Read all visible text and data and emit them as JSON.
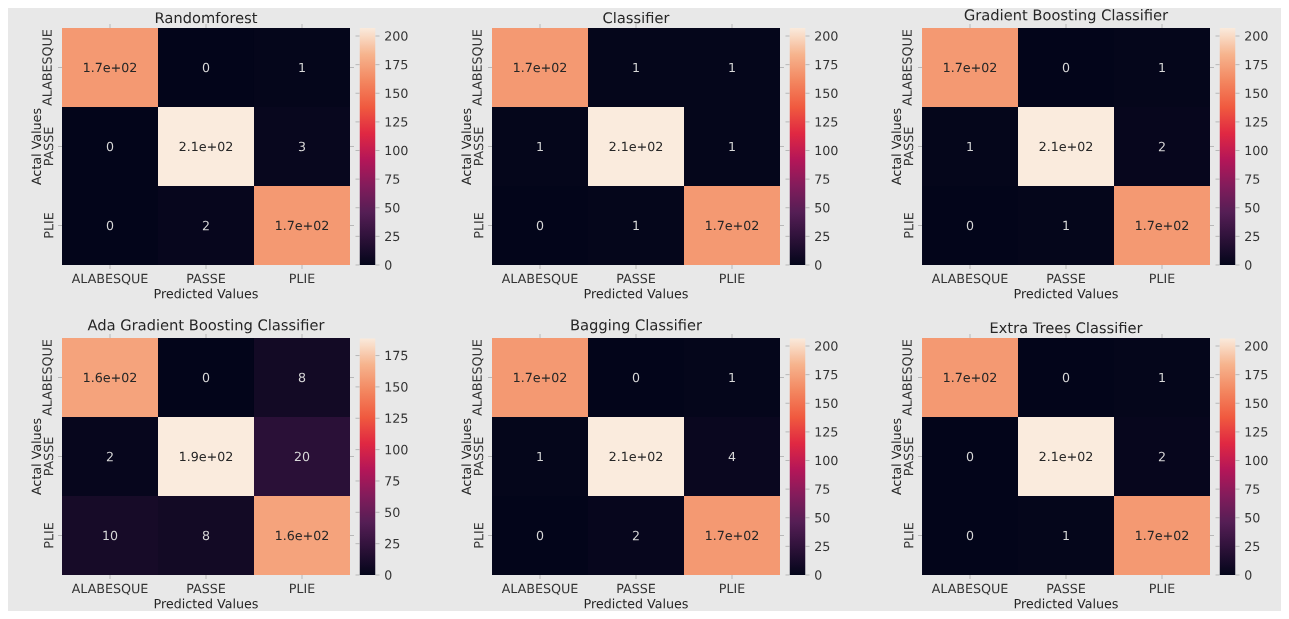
{
  "chart_data": [
    {
      "type": "heatmap",
      "title": "Randomforest",
      "xlabel": "Predicted Values",
      "ylabel": "Actal Values",
      "categories": [
        "ALABESQUE",
        "PASSE",
        "PLIE"
      ],
      "y_categories": [
        "ALABESQUE",
        "PASSE",
        "PLIE"
      ],
      "cells": [
        [
          170,
          0,
          1
        ],
        [
          0,
          207,
          3
        ],
        [
          0,
          2,
          170
        ]
      ],
      "cell_labels": [
        [
          "1.7e+02",
          "0",
          "1"
        ],
        [
          "0",
          "2.1e+02",
          "3"
        ],
        [
          "0",
          "2",
          "1.7e+02"
        ]
      ],
      "clim": [
        0,
        207
      ],
      "cticks": [
        0,
        25,
        50,
        75,
        100,
        125,
        150,
        175,
        200
      ]
    },
    {
      "type": "heatmap",
      "title": "Classifier",
      "xlabel": "Predicted Values",
      "ylabel": "Actal Values",
      "categories": [
        "ALABESQUE",
        "PASSE",
        "PLIE"
      ],
      "y_categories": [
        "ALABESQUE",
        "PASSE",
        "PLIE"
      ],
      "cells": [
        [
          170,
          1,
          1
        ],
        [
          1,
          207,
          1
        ],
        [
          0,
          1,
          170
        ]
      ],
      "cell_labels": [
        [
          "1.7e+02",
          "1",
          "1"
        ],
        [
          "1",
          "2.1e+02",
          "1"
        ],
        [
          "0",
          "1",
          "1.7e+02"
        ]
      ],
      "clim": [
        0,
        207
      ],
      "cticks": [
        0,
        25,
        50,
        75,
        100,
        125,
        150,
        175,
        200
      ]
    },
    {
      "type": "heatmap",
      "title": "Gradient Boosting Classifier",
      "xlabel": "Predicted Values",
      "ylabel": "Actal Values",
      "categories": [
        "ALABESQUE",
        "PASSE",
        "PLIE"
      ],
      "y_categories": [
        "ALABESQUE",
        "PASSE",
        "PLIE"
      ],
      "cells": [
        [
          170,
          0,
          1
        ],
        [
          1,
          207,
          2
        ],
        [
          0,
          1,
          170
        ]
      ],
      "cell_labels": [
        [
          "1.7e+02",
          "0",
          "1"
        ],
        [
          "1",
          "2.1e+02",
          "2"
        ],
        [
          "0",
          "1",
          "1.7e+02"
        ]
      ],
      "clim": [
        0,
        207
      ],
      "cticks": [
        0,
        25,
        50,
        75,
        100,
        125,
        150,
        175,
        200
      ]
    },
    {
      "type": "heatmap",
      "title": "Ada Gradient Boosting Classifier",
      "xlabel": "Predicted Values",
      "ylabel": "Actal Values",
      "categories": [
        "ALABESQUE",
        "PASSE",
        "PLIE"
      ],
      "y_categories": [
        "ALABESQUE",
        "PASSE",
        "PLIE"
      ],
      "cells": [
        [
          160,
          0,
          8
        ],
        [
          2,
          189,
          20
        ],
        [
          10,
          8,
          160
        ]
      ],
      "cell_labels": [
        [
          "1.6e+02",
          "0",
          "8"
        ],
        [
          "2",
          "1.9e+02",
          "20"
        ],
        [
          "10",
          "8",
          "1.6e+02"
        ]
      ],
      "clim": [
        0,
        189
      ],
      "cticks": [
        0,
        25,
        50,
        75,
        100,
        125,
        150,
        175
      ]
    },
    {
      "type": "heatmap",
      "title": "Bagging Classifier",
      "xlabel": "Predicted Values",
      "ylabel": "Actal Values",
      "categories": [
        "ALABESQUE",
        "PASSE",
        "PLIE"
      ],
      "y_categories": [
        "ALABESQUE",
        "PASSE",
        "PLIE"
      ],
      "cells": [
        [
          170,
          0,
          1
        ],
        [
          1,
          207,
          4
        ],
        [
          0,
          2,
          170
        ]
      ],
      "cell_labels": [
        [
          "1.7e+02",
          "0",
          "1"
        ],
        [
          "1",
          "2.1e+02",
          "4"
        ],
        [
          "0",
          "2",
          "1.7e+02"
        ]
      ],
      "clim": [
        0,
        207
      ],
      "cticks": [
        0,
        25,
        50,
        75,
        100,
        125,
        150,
        175,
        200
      ]
    },
    {
      "type": "heatmap",
      "title": "Extra Trees Classifier",
      "xlabel": "Predicted Values",
      "ylabel": "Actal Values",
      "categories": [
        "ALABESQUE",
        "PASSE",
        "PLIE"
      ],
      "y_categories": [
        "ALABESQUE",
        "PASSE",
        "PLIE"
      ],
      "cells": [
        [
          170,
          0,
          1
        ],
        [
          0,
          207,
          2
        ],
        [
          0,
          1,
          170
        ]
      ],
      "cell_labels": [
        [
          "1.7e+02",
          "0",
          "1"
        ],
        [
          "0",
          "2.1e+02",
          "2"
        ],
        [
          "0",
          "1",
          "1.7e+02"
        ]
      ],
      "clim": [
        0,
        207
      ],
      "cticks": [
        0,
        25,
        50,
        75,
        100,
        125,
        150,
        175,
        200
      ]
    }
  ]
}
